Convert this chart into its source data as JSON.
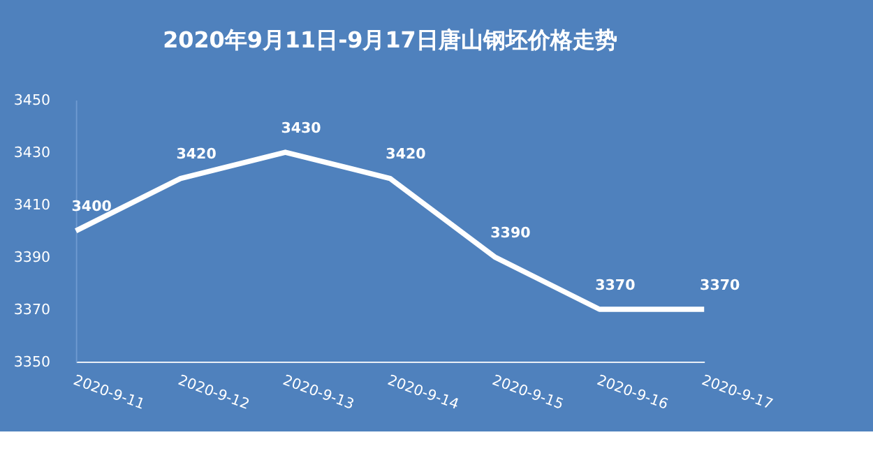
{
  "chart_data": {
    "type": "line",
    "title": "2020年9月11日-9月17日唐山钢坯价格走势",
    "categories": [
      "2020-9-11",
      "2020-9-12",
      "2020-9-13",
      "2020-9-14",
      "2020-9-15",
      "2020-9-16",
      "2020-9-17"
    ],
    "series": [
      {
        "color": "#ffffff",
        "values": [
          3400,
          3420,
          3430,
          3420,
          3390,
          3370,
          3370
        ]
      }
    ],
    "ylim": [
      3350,
      3450
    ],
    "yticks": [
      3350,
      3370,
      3390,
      3410,
      3430,
      3450
    ],
    "data_labels": true,
    "grid": false,
    "legend": false,
    "marker": "none",
    "line_style": "solid"
  }
}
